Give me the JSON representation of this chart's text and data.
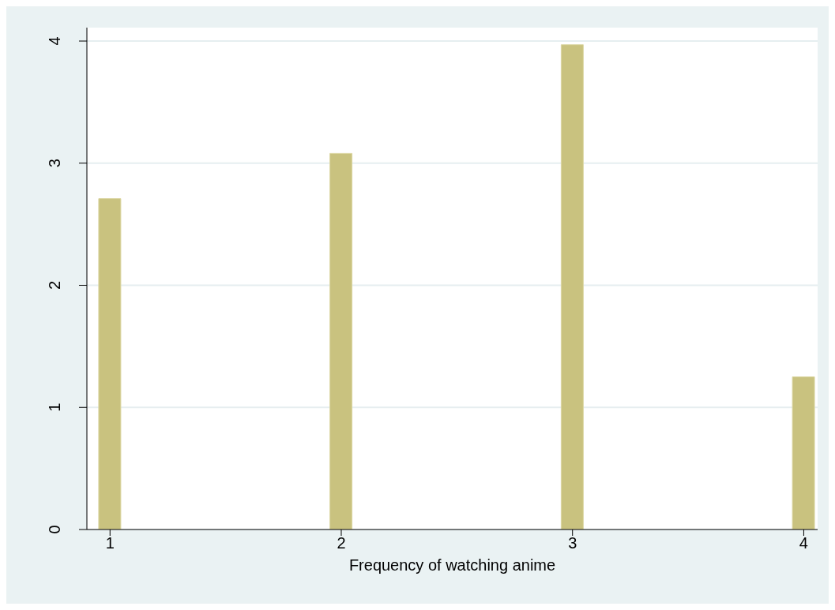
{
  "chart_data": {
    "type": "bar",
    "xlabel": "Frequency of watching anime",
    "x": [
      1,
      2,
      3,
      4
    ],
    "values": [
      2.71,
      3.08,
      3.97,
      1.25
    ],
    "color": "#c9c27f",
    "xlim": [
      0.9,
      4.06
    ],
    "xticks": [
      1,
      2,
      3,
      4
    ],
    "ylim": [
      0,
      4.11
    ],
    "yticks": [
      0,
      1,
      2,
      3,
      4
    ],
    "grid": "y"
  }
}
